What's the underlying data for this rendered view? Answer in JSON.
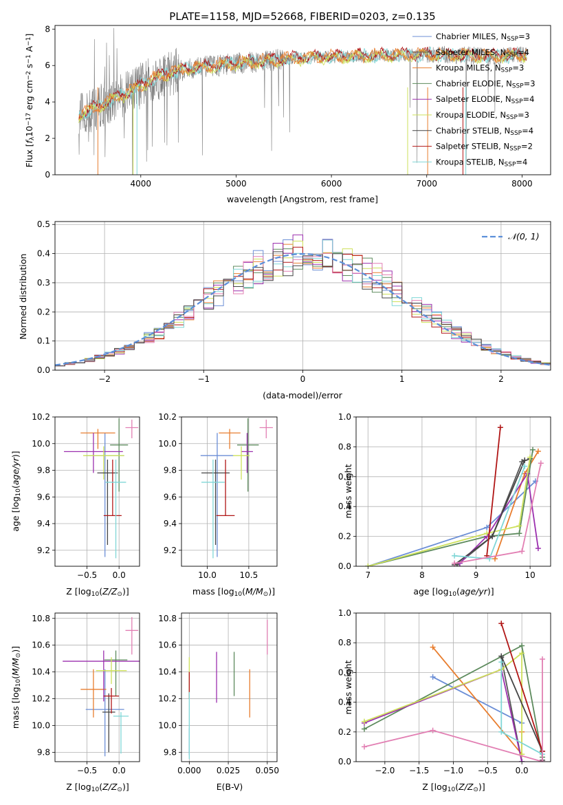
{
  "figure_title": "PLATE=1158, MJD=52668, FIBERID=0203, z=0.135",
  "colors": {
    "Chabrier MILES": "#6b8ed6",
    "Salpeter MILES": "#555555",
    "Kroupa MILES": "#e87d2e",
    "Chabrier ELODIE": "#5c8a5c",
    "Salpeter ELODIE": "#9b2fae",
    "Kroupa ELODIE": "#cde05a",
    "Chabrier STELIB": "#444444",
    "Salpeter STELIB": "#b01515",
    "Kroupa STELIB": "#7fd6d6",
    "pink": "#e27fb3",
    "normal": "#5b8fd9"
  },
  "chart_data": [
    {
      "id": "spectrum",
      "type": "line",
      "title": "PLATE=1158, MJD=52668, FIBERID=0203, z=0.135",
      "xlabel": "wavelength [Angstrom, rest frame]",
      "ylabel": "Flux [f_λ10^-17 erg cm^-2 s^-1 A^-1]",
      "xlim": [
        3100,
        8300
      ],
      "ylim": [
        0,
        8.2
      ],
      "xticks": [
        4000,
        5000,
        6000,
        7000,
        8000
      ],
      "yticks": [
        0,
        2,
        4,
        6,
        8
      ],
      "legend": "right",
      "legend_entries": [
        {
          "label": "Chabrier MILES, N",
          "sub": "SSP",
          "eq": "=3"
        },
        {
          "label": "Salpeter MILES, N",
          "sub": "SSP",
          "eq": "=4"
        },
        {
          "label": "Kroupa MILES, N",
          "sub": "SSP",
          "eq": "=3"
        },
        {
          "label": "Chabrier ELODIE, N",
          "sub": "SSP",
          "eq": "=3"
        },
        {
          "label": "Salpeter ELODIE, N",
          "sub": "SSP",
          "eq": "=4"
        },
        {
          "label": "Kroupa ELODIE, N",
          "sub": "SSP",
          "eq": "=3"
        },
        {
          "label": "Chabrier STELIB, N",
          "sub": "SSP",
          "eq": "=4"
        },
        {
          "label": "Salpeter STELIB, N",
          "sub": "SSP",
          "eq": "=2"
        },
        {
          "label": "Kroupa STELIB, N",
          "sub": "SSP",
          "eq": "=4"
        }
      ],
      "continuum": {
        "x": [
          3350,
          3500,
          3700,
          3900,
          4100,
          4300,
          4600,
          5000,
          5400,
          5800,
          6200,
          6600,
          7000,
          7400,
          7800,
          8050
        ],
        "y": [
          3.3,
          3.6,
          4.1,
          4.6,
          5.2,
          5.6,
          5.9,
          6.1,
          6.3,
          6.45,
          6.5,
          6.55,
          6.6,
          6.55,
          6.5,
          6.6
        ]
      }
    },
    {
      "id": "residuals",
      "type": "histogram",
      "xlabel": "(data-model)/error",
      "ylabel": "Normed distribution",
      "xlim": [
        -2.5,
        2.5
      ],
      "ylim": [
        0,
        0.51
      ],
      "xticks": [
        -2,
        -1,
        0,
        1,
        2
      ],
      "yticks": [
        0.0,
        0.1,
        0.2,
        0.3,
        0.4,
        0.5
      ],
      "legend": "top-right",
      "legend_label": "N(0,1)",
      "bin_width": 0.1,
      "base_density": "gaussian"
    },
    {
      "id": "age-vs-Z",
      "type": "errorbar",
      "xlabel": "Z [log10(Z/Z☉)]",
      "ylabel": "age [log10(age/yr)]",
      "xlim": [
        -1.0,
        0.32
      ],
      "ylim": [
        9.08,
        10.2
      ],
      "xticks": [
        -0.5,
        0.0
      ],
      "yticks": [
        9.2,
        9.4,
        9.6,
        9.8,
        10.0,
        10.2
      ],
      "points": [
        {
          "color": "#6b8ed6",
          "x": -0.22,
          "xerr": 0.3,
          "y": 9.91,
          "yerr": [
            0.76,
            0.17
          ]
        },
        {
          "color": "#e87d2e",
          "x": -0.33,
          "xerr": 0.27,
          "y": 10.08,
          "yerr": [
            0.12,
            0.03
          ]
        },
        {
          "color": "#5c8a5c",
          "x": 0.0,
          "xerr": 0.14,
          "y": 9.99,
          "yerr": [
            0.35,
            0.2
          ]
        },
        {
          "color": "#9b2fae",
          "x": -0.4,
          "xerr": 0.46,
          "y": 9.94,
          "yerr": [
            0.16,
            0.14
          ]
        },
        {
          "color": "#cde05a",
          "x": -0.24,
          "xerr": 0.32,
          "y": 9.91,
          "yerr": [
            0.18,
            0.07
          ]
        },
        {
          "color": "#444444",
          "x": -0.18,
          "xerr": 0.16,
          "y": 9.78,
          "yerr": [
            0.54,
            0.1
          ]
        },
        {
          "color": "#b01515",
          "x": -0.1,
          "xerr": 0.14,
          "y": 9.46,
          "yerr": [
            0.0,
            0.42
          ]
        },
        {
          "color": "#7fd6d6",
          "x": -0.05,
          "xerr": 0.16,
          "y": 9.71,
          "yerr": [
            0.57,
            0.17
          ]
        },
        {
          "color": "#e27fb3",
          "x": 0.2,
          "xerr": 0.1,
          "y": 10.12,
          "yerr": [
            0.08,
            0.06
          ]
        }
      ]
    },
    {
      "id": "age-vs-mass",
      "type": "errorbar",
      "xlabel": "mass [log10(M/M☉)]",
      "ylabel": "",
      "xlim": [
        9.69,
        10.84
      ],
      "ylim": [
        9.08,
        10.2
      ],
      "xticks": [
        10.0,
        10.5
      ],
      "yticks": [
        9.2,
        9.4,
        9.6,
        9.8,
        10.0,
        10.2
      ],
      "points": [
        {
          "color": "#6b8ed6",
          "x": 10.12,
          "xerr": 0.2,
          "y": 9.91,
          "yerr": [
            0.76,
            0.17
          ]
        },
        {
          "color": "#e87d2e",
          "x": 10.27,
          "xerr": 0.13,
          "y": 10.08,
          "yerr": [
            0.12,
            0.03
          ]
        },
        {
          "color": "#5c8a5c",
          "x": 10.49,
          "xerr": 0.13,
          "y": 9.99,
          "yerr": [
            0.35,
            0.2
          ]
        },
        {
          "color": "#9b2fae",
          "x": 10.48,
          "xerr": 0.07,
          "y": 9.94,
          "yerr": [
            0.16,
            0.14
          ]
        },
        {
          "color": "#cde05a",
          "x": 10.41,
          "xerr": 0.1,
          "y": 9.91,
          "yerr": [
            0.18,
            0.07
          ]
        },
        {
          "color": "#444444",
          "x": 10.1,
          "xerr": 0.17,
          "y": 9.78,
          "yerr": [
            0.54,
            0.1
          ]
        },
        {
          "color": "#b01515",
          "x": 10.22,
          "xerr": 0.11,
          "y": 9.46,
          "yerr": [
            0.0,
            0.42
          ]
        },
        {
          "color": "#7fd6d6",
          "x": 10.07,
          "xerr": 0.14,
          "y": 9.71,
          "yerr": [
            0.57,
            0.17
          ]
        },
        {
          "color": "#e27fb3",
          "x": 10.71,
          "xerr": 0.08,
          "y": 10.12,
          "yerr": [
            0.08,
            0.06
          ]
        }
      ]
    },
    {
      "id": "weight-vs-age",
      "type": "line",
      "xlabel": "age [log10(age/yr)]",
      "ylabel": "mass weight",
      "xlim": [
        6.78,
        10.38
      ],
      "ylim": [
        0,
        1.0
      ],
      "xticks": [
        7,
        8,
        9,
        10
      ],
      "yticks": [
        0.0,
        0.2,
        0.4,
        0.6,
        0.8,
        1.0
      ],
      "series": [
        {
          "color": "#6b8ed6",
          "x": [
            7.0,
            9.2,
            10.1
          ],
          "y": [
            0.0,
            0.26,
            0.57
          ]
        },
        {
          "color": "#555555",
          "x": [
            8.65,
            9.3,
            9.85,
            10.0
          ],
          "y": [
            0.01,
            0.2,
            0.7,
            0.72
          ]
        },
        {
          "color": "#e87d2e",
          "x": [
            9.35,
            9.9,
            10.15
          ],
          "y": [
            0.05,
            0.62,
            0.77
          ]
        },
        {
          "color": "#5c8a5c",
          "x": [
            7.0,
            9.2,
            9.8,
            10.05
          ],
          "y": [
            0.0,
            0.2,
            0.22,
            0.78
          ]
        },
        {
          "color": "#9b2fae",
          "x": [
            8.7,
            9.2,
            9.95,
            10.15
          ],
          "y": [
            0.02,
            0.2,
            0.62,
            0.12
          ]
        },
        {
          "color": "#cde05a",
          "x": [
            7.0,
            9.2,
            9.8,
            10.0
          ],
          "y": [
            0.0,
            0.22,
            0.27,
            0.73
          ]
        },
        {
          "color": "#444444",
          "x": [
            8.6,
            9.3,
            9.9
          ],
          "y": [
            0.01,
            0.2,
            0.71
          ]
        },
        {
          "color": "#b01515",
          "x": [
            9.2,
            9.45
          ],
          "y": [
            0.07,
            0.93
          ]
        },
        {
          "color": "#7fd6d6",
          "x": [
            8.6,
            9.25,
            9.9
          ],
          "y": [
            0.07,
            0.05,
            0.67
          ]
        },
        {
          "color": "#e27fb3",
          "x": [
            8.6,
            9.85,
            10.2
          ],
          "y": [
            0.02,
            0.1,
            0.69
          ]
        }
      ]
    },
    {
      "id": "mass-vs-Z",
      "type": "errorbar",
      "xlabel": "Z [log10(Z/Z☉)]",
      "ylabel": "mass [log10(M/M☉)]",
      "xlim": [
        -1.0,
        0.32
      ],
      "ylim": [
        9.73,
        10.84
      ],
      "xticks": [
        -0.5,
        0.0
      ],
      "yticks": [
        9.8,
        10.0,
        10.2,
        10.4,
        10.6,
        10.8
      ],
      "points": [
        {
          "color": "#6b8ed6",
          "x": -0.22,
          "xerr": 0.3,
          "y": 10.12,
          "yerr": [
            0.35,
            0.3
          ]
        },
        {
          "color": "#e87d2e",
          "x": -0.4,
          "xerr": 0.2,
          "y": 10.27,
          "yerr": [
            0.21,
            0.15
          ]
        },
        {
          "color": "#5c8a5c",
          "x": -0.05,
          "xerr": 0.18,
          "y": 10.49,
          "yerr": [
            0.27,
            0.07
          ]
        },
        {
          "color": "#9b2fae",
          "x": -0.24,
          "xerr": 0.64,
          "y": 10.48,
          "yerr": [
            0.3,
            0.08
          ]
        },
        {
          "color": "#cde05a",
          "x": -0.12,
          "xerr": 0.24,
          "y": 10.41,
          "yerr": [
            0.1,
            0.1
          ]
        },
        {
          "color": "#444444",
          "x": -0.16,
          "xerr": 0.1,
          "y": 10.1,
          "yerr": [
            0.3,
            0.14
          ]
        },
        {
          "color": "#b01515",
          "x": -0.12,
          "xerr": 0.12,
          "y": 10.22,
          "yerr": [
            0.13,
            0.06
          ]
        },
        {
          "color": "#7fd6d6",
          "x": 0.03,
          "xerr": 0.12,
          "y": 10.07,
          "yerr": [
            0.28,
            0.03
          ]
        },
        {
          "color": "#e27fb3",
          "x": 0.2,
          "xerr": 0.1,
          "y": 10.71,
          "yerr": [
            0.18,
            0.1
          ]
        }
      ]
    },
    {
      "id": "mass-vs-ebv",
      "type": "errorbar",
      "xlabel": "E(B-V)",
      "ylabel": "",
      "xlim": [
        -0.004,
        0.045
      ],
      "ylim": [
        9.73,
        10.84
      ],
      "xticks": [
        0.0,
        0.02,
        0.04
      ],
      "xtick_labels": [
        "0.000",
        "0.025",
        "0.050"
      ],
      "yticks": [
        9.8,
        10.0,
        10.2,
        10.4,
        10.6,
        10.8
      ],
      "points": [
        {
          "color": "#6b8ed6",
          "x": 0.0,
          "y": 9.88,
          "yerr": [
            0.1,
            0.1
          ]
        },
        {
          "color": "#e87d2e",
          "x": 0.031,
          "y": 10.27,
          "yerr": [
            0.21,
            0.15
          ]
        },
        {
          "color": "#5c8a5c",
          "x": 0.023,
          "y": 10.38,
          "yerr": [
            0.16,
            0.17
          ]
        },
        {
          "color": "#9b2fae",
          "x": 0.014,
          "y": 10.36,
          "yerr": [
            0.19,
            0.19
          ]
        },
        {
          "color": "#cde05a",
          "x": 0.0,
          "y": 10.35,
          "yerr": [
            0.15,
            0.16
          ]
        },
        {
          "color": "#b01515",
          "x": 0.0,
          "y": 10.3,
          "yerr": [
            0.1,
            0.1
          ]
        },
        {
          "color": "#7fd6d6",
          "x": 0.0,
          "y": 10.0,
          "yerr": [
            0.25,
            0.25
          ]
        },
        {
          "color": "#e27fb3",
          "x": 0.04,
          "y": 10.66,
          "yerr": [
            0.13,
            0.13
          ]
        }
      ]
    },
    {
      "id": "weight-vs-Z",
      "type": "line",
      "xlabel": "Z [log10(Z/Z☉)]",
      "ylabel": "mass weight",
      "xlim": [
        -2.42,
        0.42
      ],
      "ylim": [
        0,
        1.0
      ],
      "xticks": [
        -2.0,
        -1.5,
        -1.0,
        -0.5,
        0.0
      ],
      "yticks": [
        0.0,
        0.2,
        0.4,
        0.6,
        0.8,
        1.0
      ],
      "series": [
        {
          "color": "#6b8ed6",
          "x": [
            -1.3,
            0.0
          ],
          "y": [
            0.57,
            0.26
          ]
        },
        {
          "color": "#555555",
          "x": [
            -0.3,
            0.0
          ],
          "y": [
            0.7,
            0.0
          ]
        },
        {
          "color": "#e87d2e",
          "x": [
            -1.3,
            0.0,
            0.0
          ],
          "y": [
            0.77,
            0.05,
            0.2
          ]
        },
        {
          "color": "#5c8a5c",
          "x": [
            -2.3,
            0.0,
            0.3
          ],
          "y": [
            0.22,
            0.78,
            0.03
          ]
        },
        {
          "color": "#9b2fae",
          "x": [
            -2.3,
            -0.3,
            0.0
          ],
          "y": [
            0.26,
            0.62,
            0.0
          ]
        },
        {
          "color": "#cde05a",
          "x": [
            -2.3,
            -0.3,
            0.0,
            0.0
          ],
          "y": [
            0.27,
            0.62,
            0.73,
            0.05
          ]
        },
        {
          "color": "#444444",
          "x": [
            -0.3,
            0.3,
            0.3
          ],
          "y": [
            0.71,
            0.07,
            0.01
          ]
        },
        {
          "color": "#b01515",
          "x": [
            -0.3,
            0.3
          ],
          "y": [
            0.93,
            0.07
          ]
        },
        {
          "color": "#7fd6d6",
          "x": [
            -0.3,
            -0.3,
            0.3
          ],
          "y": [
            0.67,
            0.2,
            0.05
          ]
        },
        {
          "color": "#e27fb3",
          "x": [
            -2.3,
            -1.3,
            0.3,
            0.3
          ],
          "y": [
            0.1,
            0.21,
            0.0,
            0.69
          ]
        }
      ]
    }
  ]
}
